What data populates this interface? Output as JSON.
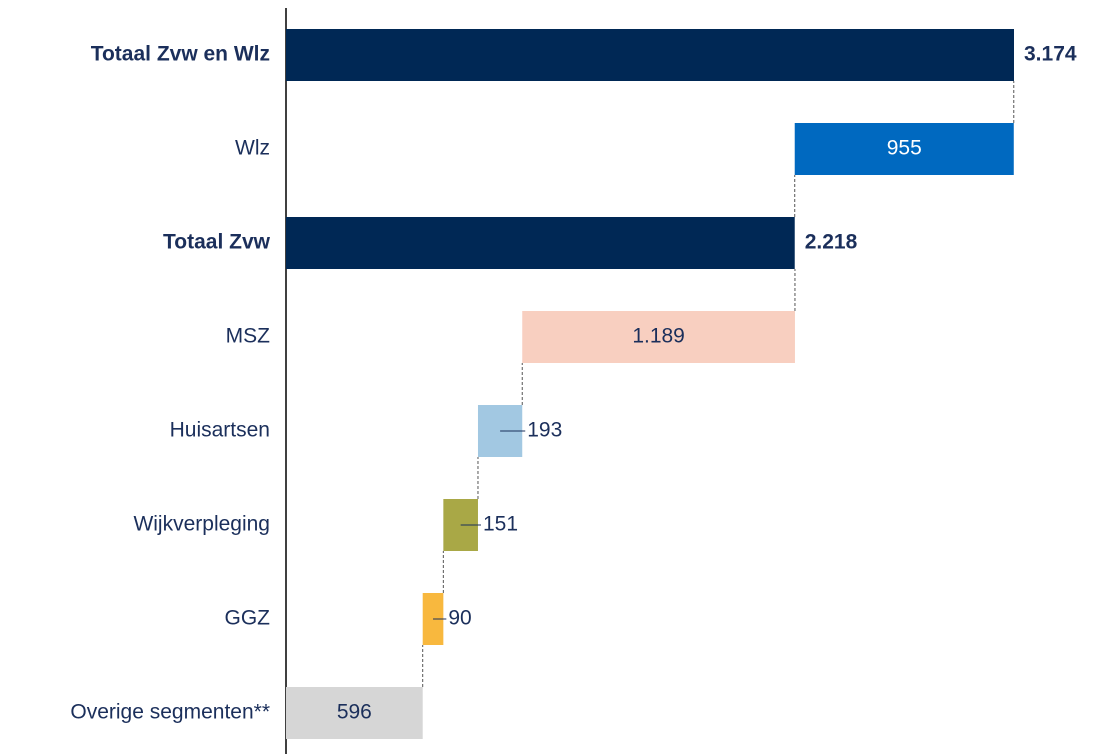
{
  "chart_data": {
    "type": "waterfall",
    "orientation": "horizontal",
    "categories": [
      "Totaal Zvw en Wlz",
      "Wlz",
      "Totaal Zvw",
      "MSZ",
      "Huisartsen",
      "Wijkverpleging",
      "GGZ",
      "Overige segmenten**"
    ],
    "values": [
      3174,
      955,
      2218,
      1189,
      193,
      151,
      90,
      596
    ],
    "value_labels": [
      "3.174",
      "955",
      "2.218",
      "1.189",
      "193",
      "151",
      "90",
      "596"
    ],
    "measure": [
      "total",
      "relative",
      "total",
      "relative",
      "relative",
      "relative",
      "relative",
      "relative"
    ],
    "colors": [
      "#002855",
      "#0069c0",
      "#002855",
      "#f8cfc0",
      "#a2c8e2",
      "#a9a846",
      "#f8b83e",
      "#d6d6d6"
    ],
    "xlim": [
      0,
      3174
    ]
  }
}
